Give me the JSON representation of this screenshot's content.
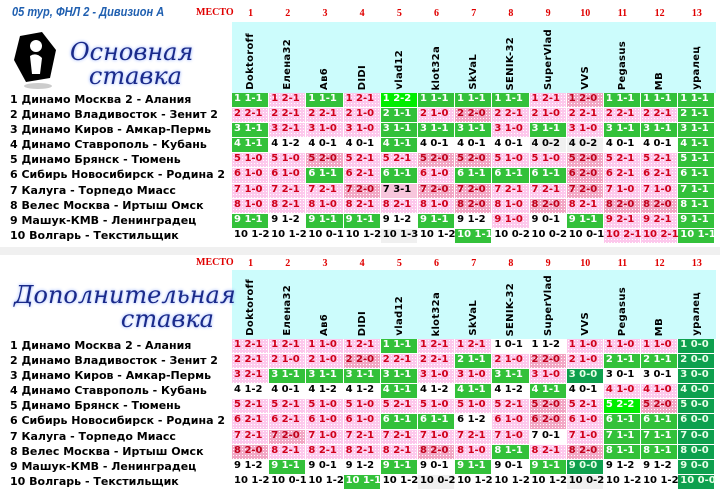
{
  "title": "05 тур, ФНЛ 2 - Дивизион А",
  "mesto_label": "МЕСТО",
  "places": [
    "1",
    "2",
    "3",
    "4",
    "5",
    "6",
    "7",
    "8",
    "9",
    "10",
    "11",
    "12",
    "13"
  ],
  "players": [
    "Doktoroff",
    "Елена32",
    "Ав6",
    "DIDI",
    "vlad12",
    "klot32a",
    "SkVaL",
    "SENIK-32",
    "SuperVlad",
    "VVS",
    "Pegasus",
    "MB",
    "уралец"
  ],
  "matches": [
    "1 Динамо Москва 2 - Алания",
    "2 Динамо Владивосток - Зенит 2",
    "3 Динамо Киров - Амкар-Пермь",
    "4 Динамо Ставрополь - Кубань",
    "5 Динамо Брянск - Тюмень",
    "6 Сибирь Новосибирск - Родина 2",
    "7 Калуга - Торпедо Миасс",
    "8 Велес Москва - Иртыш Омск",
    "9 Машук-КМВ - Ленинградец",
    "10 Волгарь - Текстильщик"
  ],
  "main": {
    "logo_line1": "Основная",
    "logo_line2": "ставка",
    "columns": [
      {
        "scores": [
          "1 1-1",
          "2 2-1",
          "3 1-1",
          "4 1-1",
          "5 1-0",
          "6 1-0",
          "7 1-0",
          "8 1-0",
          "9 1-1",
          "10 1-2"
        ],
        "styles": [
          "g",
          "p",
          "g",
          "g",
          "p",
          "p",
          "p",
          "p",
          "g",
          "w"
        ]
      },
      {
        "scores": [
          "1 2-1",
          "2 2-1",
          "3 2-1",
          "4 1-2",
          "5 1-0",
          "6 1-0",
          "7 2-1",
          "8 2-1",
          "9 1-2",
          "10 1-2"
        ],
        "styles": [
          "p",
          "p",
          "p",
          "w",
          "p",
          "p",
          "p",
          "p",
          "w",
          "w"
        ]
      },
      {
        "scores": [
          "1 1-1",
          "2 2-1",
          "3 1-0",
          "4 0-1",
          "5 2-0",
          "6 1-1",
          "7 2-1",
          "8 1-0",
          "9 1-1",
          "10 0-1"
        ],
        "styles": [
          "g",
          "p",
          "p",
          "w",
          "P",
          "g",
          "p",
          "p",
          "g",
          "w"
        ]
      },
      {
        "scores": [
          "1 2-1",
          "2 1-0",
          "3 1-0",
          "4 0-1",
          "5 2-1",
          "6 2-1",
          "7 2-0",
          "8 2-1",
          "9 1-1",
          "10 1-2"
        ],
        "styles": [
          "p",
          "p",
          "p",
          "w",
          "p",
          "p",
          "P",
          "p",
          "g",
          "w"
        ]
      },
      {
        "scores": [
          "1 2-2",
          "2 1-1",
          "3 1-1",
          "4 1-1",
          "5 2-1",
          "6 1-1",
          "7 3-1",
          "8 2-1",
          "9 1-2",
          "10 1-3"
        ],
        "styles": [
          "G",
          "g",
          "g",
          "g",
          "p",
          "g",
          "x",
          "p",
          "w",
          "s"
        ]
      },
      {
        "scores": [
          "1 1-1",
          "2 1-0",
          "3 1-1",
          "4 0-1",
          "5 2-0",
          "6 1-0",
          "7 2-0",
          "8 1-0",
          "9 1-1",
          "10 1-2"
        ],
        "styles": [
          "g",
          "p",
          "g",
          "w",
          "P",
          "p",
          "P",
          "p",
          "g",
          "w"
        ]
      },
      {
        "scores": [
          "1 1-1",
          "2 2-0",
          "3 1-1",
          "4 0-1",
          "5 2-0",
          "6 1-1",
          "7 2-0",
          "8 2-0",
          "9 1-2",
          "10 1-1"
        ],
        "styles": [
          "g",
          "P",
          "g",
          "w",
          "P",
          "g",
          "P",
          "P",
          "w",
          "g"
        ]
      },
      {
        "scores": [
          "1 1-1",
          "2 2-1",
          "3 1-0",
          "4 0-1",
          "5 1-0",
          "6 1-1",
          "7 2-1",
          "8 1-0",
          "9 1-0",
          "10 0-2"
        ],
        "styles": [
          "g",
          "p",
          "p",
          "w",
          "p",
          "g",
          "p",
          "p",
          "p",
          "w"
        ]
      },
      {
        "scores": [
          "1 2-1",
          "2 1-0",
          "3 1-1",
          "4 0-2",
          "5 1-0",
          "6 1-1",
          "7 2-1",
          "8 2-0",
          "9 0-1",
          "10 0-2"
        ],
        "styles": [
          "p",
          "p",
          "g",
          "s",
          "p",
          "g",
          "p",
          "P",
          "w",
          "w"
        ]
      },
      {
        "scores": [
          "1 2-0",
          "2 2-1",
          "3 1-0",
          "4 0-2",
          "5 2-0",
          "6 2-0",
          "7 2-0",
          "8 2-1",
          "9 1-1",
          "10 0-1"
        ],
        "styles": [
          "P",
          "p",
          "p",
          "s",
          "P",
          "P",
          "P",
          "p",
          "g",
          "w"
        ]
      },
      {
        "scores": [
          "1 1-1",
          "2 2-1",
          "3 1-1",
          "4 0-1",
          "5 2-1",
          "6 2-1",
          "7 1-0",
          "8 2-0",
          "9 2-1",
          "10 2-1"
        ],
        "styles": [
          "g",
          "p",
          "g",
          "w",
          "p",
          "p",
          "p",
          "P",
          "p",
          "p"
        ]
      },
      {
        "scores": [
          "1 1-1",
          "2 2-1",
          "3 1-1",
          "4 0-1",
          "5 2-1",
          "6 2-1",
          "7 1-0",
          "8 2-0",
          "9 2-1",
          "10 2-1"
        ],
        "styles": [
          "g",
          "p",
          "g",
          "w",
          "p",
          "p",
          "p",
          "P",
          "p",
          "p"
        ]
      },
      {
        "scores": [
          "1 1-1",
          "2 1-1",
          "3 1-1",
          "4 1-1",
          "5 1-1",
          "6 1-1",
          "7 1-1",
          "8 1-1",
          "9 1-1",
          "10 1-1"
        ],
        "styles": [
          "g",
          "g",
          "g",
          "g",
          "g",
          "g",
          "g",
          "g",
          "g",
          "g"
        ]
      }
    ]
  },
  "extra": {
    "logo_line1": "Дополнительная",
    "logo_line2": "ставка",
    "columns": [
      {
        "scores": [
          "1 2-1",
          "2 2-1",
          "3 2-1",
          "4 1-2",
          "5 2-1",
          "6 2-1",
          "7 2-1",
          "8 2-0",
          "9 1-2",
          "10 1-2"
        ],
        "styles": [
          "p",
          "p",
          "p",
          "w",
          "p",
          "p",
          "p",
          "P",
          "w",
          "w"
        ]
      },
      {
        "scores": [
          "1 2-1",
          "2 1-0",
          "3 1-1",
          "4 0-1",
          "5 2-1",
          "6 2-1",
          "7 2-0",
          "8 2-1",
          "9 1-1",
          "10 0-1"
        ],
        "styles": [
          "p",
          "p",
          "g",
          "w",
          "p",
          "p",
          "P",
          "p",
          "g",
          "w"
        ]
      },
      {
        "scores": [
          "1 1-0",
          "2 1-0",
          "3 1-1",
          "4 1-2",
          "5 1-0",
          "6 1-0",
          "7 1-0",
          "8 2-1",
          "9 0-1",
          "10 1-2"
        ],
        "styles": [
          "p",
          "p",
          "g",
          "w",
          "p",
          "p",
          "p",
          "p",
          "w",
          "w"
        ]
      },
      {
        "scores": [
          "1 2-1",
          "2 2-0",
          "3 1-1",
          "4 1-2",
          "5 1-0",
          "6 1-0",
          "7 2-1",
          "8 2-1",
          "9 1-2",
          "10 1-1"
        ],
        "styles": [
          "p",
          "P",
          "g",
          "w",
          "p",
          "p",
          "p",
          "p",
          "w",
          "g"
        ]
      },
      {
        "scores": [
          "1 1-1",
          "2 2-1",
          "3 1-1",
          "4 1-1",
          "5 2-1",
          "6 1-1",
          "7 2-1",
          "8 2-1",
          "9 1-1",
          "10 1-2"
        ],
        "styles": [
          "g",
          "p",
          "g",
          "g",
          "p",
          "g",
          "p",
          "p",
          "g",
          "w"
        ]
      },
      {
        "scores": [
          "1 2-1",
          "2 2-1",
          "3 1-0",
          "4 1-2",
          "5 1-0",
          "6 1-1",
          "7 1-0",
          "8 2-0",
          "9 0-1",
          "10 0-2"
        ],
        "styles": [
          "p",
          "p",
          "p",
          "w",
          "p",
          "g",
          "p",
          "P",
          "w",
          "s"
        ]
      },
      {
        "scores": [
          "1 2-1",
          "2 1-1",
          "3 1-0",
          "4 1-1",
          "5 1-0",
          "6 1-2",
          "7 2-1",
          "8 1-0",
          "9 1-1",
          "10 1-2"
        ],
        "styles": [
          "p",
          "g",
          "p",
          "g",
          "p",
          "w",
          "p",
          "p",
          "g",
          "w"
        ]
      },
      {
        "scores": [
          "1 0-1",
          "2 1-0",
          "3 1-1",
          "4 1-2",
          "5 2-1",
          "6 1-0",
          "7 1-0",
          "8 1-1",
          "9 0-1",
          "10 1-2"
        ],
        "styles": [
          "w",
          "p",
          "g",
          "w",
          "p",
          "p",
          "p",
          "g",
          "w",
          "w"
        ]
      },
      {
        "scores": [
          "1 1-2",
          "2 2-0",
          "3 1-0",
          "4 1-1",
          "5 2-0",
          "6 2-0",
          "7 0-1",
          "8 2-1",
          "9 1-1",
          "10 1-2"
        ],
        "styles": [
          "w",
          "P",
          "p",
          "g",
          "P",
          "P",
          "w",
          "p",
          "g",
          "w"
        ]
      },
      {
        "scores": [
          "1 1-0",
          "2 1-0",
          "3 0-0",
          "4 0-1",
          "5 2-1",
          "6 1-0",
          "7 1-0",
          "8 2-0",
          "9 0-0",
          "10 0-2"
        ],
        "styles": [
          "p",
          "p",
          "D",
          "w",
          "p",
          "p",
          "p",
          "P",
          "D",
          "s"
        ]
      },
      {
        "scores": [
          "1 1-0",
          "2 1-1",
          "3 0-1",
          "4 1-0",
          "5 2-2",
          "6 1-1",
          "7 1-1",
          "8 1-1",
          "9 1-2",
          "10 1-2"
        ],
        "styles": [
          "p",
          "g",
          "w",
          "p",
          "G",
          "g",
          "g",
          "g",
          "w",
          "w"
        ]
      },
      {
        "scores": [
          "1 1-0",
          "2 1-1",
          "3 0-1",
          "4 1-0",
          "5 2-0",
          "6 1-1",
          "7 1-1",
          "8 1-1",
          "9 1-2",
          "10 1-2"
        ],
        "styles": [
          "p",
          "g",
          "w",
          "p",
          "P",
          "g",
          "g",
          "g",
          "w",
          "w"
        ]
      },
      {
        "scores": [
          "1 0-0",
          "2 0-0",
          "3 0-0",
          "4 0-0",
          "5 0-0",
          "6 0-0",
          "7 0-0",
          "8 0-0",
          "9 0-0",
          "10 0-0"
        ],
        "styles": [
          "D",
          "D",
          "D",
          "D",
          "D",
          "D",
          "D",
          "D",
          "D",
          "D"
        ]
      }
    ]
  }
}
